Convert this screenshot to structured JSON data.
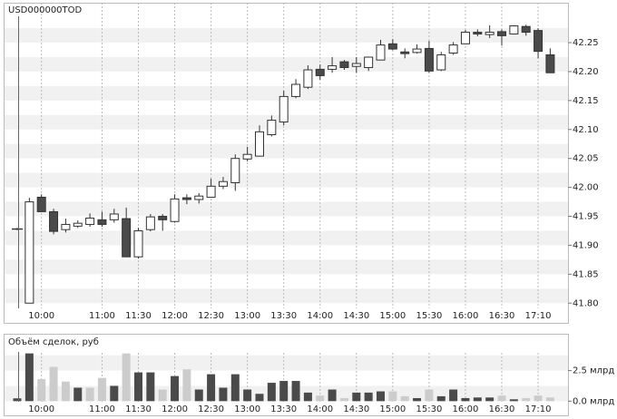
{
  "chart_data": [
    {
      "type": "candlestick",
      "title": "USD000000TOD",
      "categories": [
        null,
        null,
        "10:00",
        null,
        null,
        null,
        null,
        "11:00",
        null,
        null,
        "11:30",
        null,
        null,
        "12:00",
        null,
        null,
        "12:30",
        null,
        null,
        "13:00",
        null,
        null,
        "13:30",
        null,
        null,
        "14:00",
        null,
        null,
        "14:30",
        null,
        null,
        "15:00",
        null,
        null,
        "15:30",
        null,
        null,
        "16:00",
        null,
        null,
        "16:30",
        null,
        null,
        "17:10",
        null
      ],
      "open": [
        41.928,
        41.8,
        41.983,
        41.958,
        41.927,
        41.933,
        41.936,
        41.944,
        41.944,
        41.946,
        41.88,
        41.927,
        41.95,
        41.941,
        41.982,
        41.979,
        41.983,
        42.002,
        42.008,
        42.049,
        42.054,
        42.091,
        42.113,
        42.157,
        42.173,
        42.204,
        42.204,
        42.217,
        42.209,
        42.207,
        42.22,
        42.248,
        42.234,
        42.233,
        42.24,
        42.203,
        42.232,
        42.248,
        42.268,
        42.264,
        42.269,
        42.265,
        42.278,
        42.271,
        42.229
      ],
      "high": [
        41.93,
        41.982,
        41.988,
        41.963,
        41.946,
        41.943,
        41.955,
        41.958,
        41.963,
        41.965,
        41.93,
        41.954,
        41.954,
        41.988,
        41.988,
        41.99,
        42.015,
        42.018,
        42.057,
        42.07,
        42.107,
        42.124,
        42.167,
        42.187,
        42.211,
        42.212,
        42.225,
        42.22,
        42.225,
        42.226,
        42.255,
        42.256,
        42.24,
        42.247,
        42.253,
        42.234,
        42.251,
        42.272,
        42.273,
        42.28,
        42.273,
        42.28,
        42.281,
        42.275,
        42.24
      ],
      "low": [
        41.926,
        41.8,
        41.958,
        41.919,
        41.922,
        41.93,
        41.932,
        41.932,
        41.939,
        41.88,
        41.877,
        41.924,
        41.925,
        41.939,
        41.971,
        41.972,
        41.983,
        41.997,
        41.994,
        42.045,
        42.054,
        42.088,
        42.107,
        42.154,
        42.17,
        42.186,
        42.198,
        42.203,
        42.198,
        42.201,
        42.22,
        42.237,
        42.223,
        42.231,
        42.198,
        42.201,
        42.229,
        42.248,
        42.261,
        42.258,
        42.245,
        42.266,
        42.262,
        42.223,
        42.198
      ],
      "close": [
        41.928,
        41.975,
        41.958,
        41.924,
        41.936,
        41.938,
        41.947,
        41.936,
        41.954,
        41.88,
        41.925,
        41.949,
        41.944,
        41.98,
        41.979,
        41.985,
        42.002,
        42.01,
        42.05,
        42.057,
        42.096,
        42.116,
        42.157,
        42.178,
        42.203,
        42.193,
        42.21,
        42.207,
        42.214,
        42.225,
        42.246,
        42.239,
        42.231,
        42.239,
        42.201,
        42.229,
        42.246,
        42.268,
        42.265,
        42.268,
        42.262,
        42.279,
        42.268,
        42.235,
        42.198
      ],
      "up_color": "#ffffff",
      "down_color": "#4a4a4a",
      "line_color": "#333333",
      "ylim": [
        41.791,
        42.319
      ],
      "yticks": [
        {
          "value": 41.8,
          "label": "41.80"
        },
        {
          "value": 41.85,
          "label": "41.85"
        },
        {
          "value": 41.9,
          "label": "41.90"
        },
        {
          "value": 41.95,
          "label": "41.95"
        },
        {
          "value": 42.0,
          "label": "42.00"
        },
        {
          "value": 42.05,
          "label": "42.05"
        },
        {
          "value": 42.1,
          "label": "42.10"
        },
        {
          "value": 42.15,
          "label": "42.15"
        },
        {
          "value": 42.2,
          "label": "42.20"
        },
        {
          "value": 42.25,
          "label": "42.25"
        }
      ],
      "grid": true
    },
    {
      "type": "bar",
      "title": "Объём сделок, руб",
      "categories": [
        null,
        null,
        "10:00",
        null,
        null,
        null,
        null,
        "11:00",
        null,
        null,
        "11:30",
        null,
        null,
        "12:00",
        null,
        null,
        "12:30",
        null,
        null,
        "13:00",
        null,
        null,
        "13:30",
        null,
        null,
        "14:00",
        null,
        null,
        "14:30",
        null,
        null,
        "15:00",
        null,
        null,
        "15:30",
        null,
        null,
        "16:00",
        null,
        null,
        "16:30",
        null,
        null,
        "17:10",
        null
      ],
      "values": [
        0.23,
        3.9,
        1.8,
        2.8,
        1.6,
        1.1,
        1.1,
        1.9,
        1.25,
        3.9,
        2.35,
        2.35,
        0.95,
        2.05,
        2.6,
        0.95,
        2.2,
        1.1,
        2.2,
        0.95,
        0.6,
        1.5,
        1.65,
        1.65,
        0.7,
        0.45,
        0.95,
        0.25,
        0.7,
        0.7,
        0.8,
        0.8,
        0.4,
        0.25,
        0.95,
        0.4,
        0.95,
        0.25,
        0.3,
        0.3,
        0.45,
        0.15,
        0.25,
        0.45,
        0.3
      ],
      "colors": [
        "#4a4a4a",
        "#4a4a4a",
        "#cccccc",
        "#cccccc",
        "#cccccc",
        "#4a4a4a",
        "#cccccc",
        "#cccccc",
        "#4a4a4a",
        "#cccccc",
        "#4a4a4a",
        "#4a4a4a",
        "#cccccc",
        "#4a4a4a",
        "#cccccc",
        "#4a4a4a",
        "#4a4a4a",
        "#4a4a4a",
        "#4a4a4a",
        "#4a4a4a",
        "#4a4a4a",
        "#4a4a4a",
        "#4a4a4a",
        "#4a4a4a",
        "#4a4a4a",
        "#cccccc",
        "#4a4a4a",
        "#cccccc",
        "#4a4a4a",
        "#4a4a4a",
        "#4a4a4a",
        "#cccccc",
        "#cccccc",
        "#4a4a4a",
        "#cccccc",
        "#4a4a4a",
        "#4a4a4a",
        "#4a4a4a",
        "#4a4a4a",
        "#4a4a4a",
        "#cccccc",
        "#4a4a4a",
        "#cccccc",
        "#cccccc",
        "#cccccc"
      ],
      "ylim": [
        -0.05,
        3.95
      ],
      "yticks": [
        {
          "value": 0,
          "label": "0.0 млрд"
        },
        {
          "value": 2.5,
          "label": "2.5 млрд"
        }
      ],
      "grid": true
    }
  ]
}
